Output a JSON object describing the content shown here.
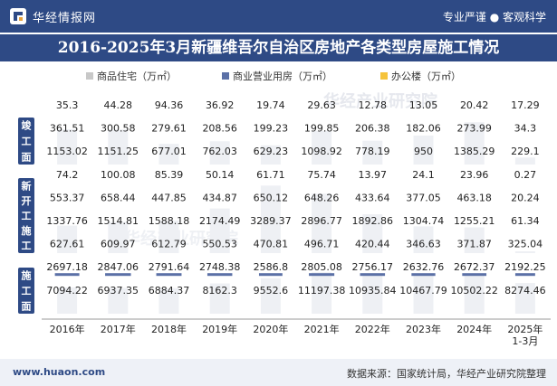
{
  "header": {
    "brand": "华经情报网",
    "tagline": "专业严谨 ● 客观科学",
    "title": "2016-2025年3月新疆维吾尔自治区房地产各类型房屋施工情况"
  },
  "footer": {
    "website": "www.huaon.com",
    "source": "数据来源：国家统计局，华经产业研究院整理"
  },
  "watermark": "华经产业研究院",
  "colors": {
    "residential": "#c8c8c8",
    "commercial": "#5b70a6",
    "office": "#f5c33b",
    "header_bg": "#2e4a85",
    "group_label": "#2e4a85"
  },
  "chart_data": {
    "type": "bar",
    "title": "2016-2025年3月新疆维吾尔自治区房地产各类型房屋施工情况",
    "unit": "万㎡",
    "categories": [
      "2016年",
      "2017年",
      "2018年",
      "2019年",
      "2020年",
      "2021年",
      "2022年",
      "2023年",
      "2024年",
      "2025年 1-3月"
    ],
    "category_lines": [
      [
        "2016年"
      ],
      [
        "2017年"
      ],
      [
        "2018年"
      ],
      [
        "2019年"
      ],
      [
        "2020年"
      ],
      [
        "2021年"
      ],
      [
        "2022年"
      ],
      [
        "2023年"
      ],
      [
        "2024年"
      ],
      [
        "2025年",
        "1-3月"
      ]
    ],
    "legend": [
      "商品住宅（万㎡）",
      "商业营业用房（万㎡）",
      "办公楼（万㎡）"
    ],
    "legend_position": "top",
    "groups": [
      {
        "name": "竣工面积",
        "label_chars": [
          "竣",
          "工",
          "面"
        ],
        "series": [
          {
            "name": "办公楼",
            "values": [
              35.3,
              44.28,
              94.36,
              36.92,
              19.74,
              29.63,
              12.78,
              13.05,
              20.42,
              17.29
            ]
          },
          {
            "name": "商业营业用房",
            "values": [
              361.51,
              300.58,
              279.61,
              208.56,
              199.23,
              199.85,
              206.38,
              182.06,
              273.99,
              34.3
            ]
          },
          {
            "name": "商品住宅",
            "values": [
              1153.02,
              1151.25,
              677.01,
              762.03,
              629.23,
              1098.92,
              778.19,
              950,
              1385.29,
              229.1
            ]
          }
        ]
      },
      {
        "name": "新开工施工面积",
        "label_chars": [
          "新",
          "开",
          "工",
          "施",
          "工"
        ],
        "series": [
          {
            "name": "办公楼",
            "values": [
              74.2,
              100.08,
              85.39,
              50.14,
              61.71,
              75.74,
              13.97,
              24.1,
              23.96,
              0.27
            ]
          },
          {
            "name": "商业营业用房",
            "values": [
              553.37,
              658.44,
              447.85,
              434.87,
              650.12,
              648.26,
              433.64,
              377.05,
              463.18,
              20.24
            ]
          },
          {
            "name": "商品住宅",
            "values": [
              1337.76,
              1514.81,
              1588.18,
              2174.49,
              3289.37,
              2896.77,
              1892.86,
              1304.74,
              1255.21,
              61.34
            ]
          }
        ]
      },
      {
        "name": "施工面积",
        "label_chars": [
          "施",
          "工",
          "面"
        ],
        "series": [
          {
            "name": "办公楼",
            "values": [
              627.61,
              609.97,
              612.79,
              550.53,
              470.81,
              496.71,
              420.44,
              346.63,
              371.87,
              325.04
            ]
          },
          {
            "name": "商业营业用房",
            "values": [
              2697.18,
              2847.06,
              2791.64,
              2748.38,
              2586.8,
              2805.08,
              2756.17,
              2632.76,
              2672.37,
              2192.25
            ]
          },
          {
            "name": "商品住宅",
            "values": [
              7094.22,
              6937.35,
              6884.37,
              8162.3,
              9552.6,
              11197.38,
              10935.84,
              10467.79,
              10502.22,
              8274.46
            ]
          }
        ]
      }
    ]
  }
}
